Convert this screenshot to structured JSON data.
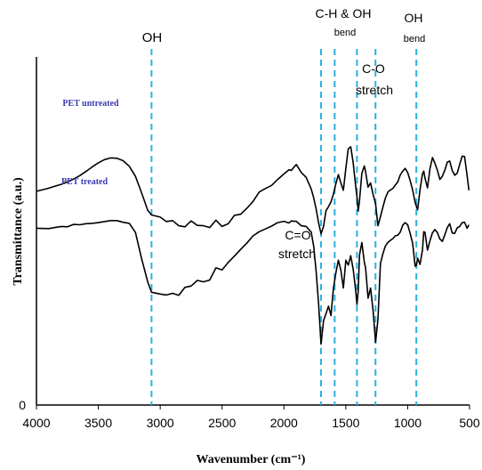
{
  "chart_data": {
    "type": "line",
    "title": "",
    "xlabel": "Wavenumber (cm⁻¹)",
    "ylabel": "Transmittance (a.u.)",
    "xlim": [
      4000,
      500
    ],
    "x_reversed": true,
    "xticks": [
      "4000",
      "3500",
      "3000",
      "2500",
      "2000",
      "1500",
      "1000",
      "500"
    ],
    "yticks": [
      "0"
    ],
    "grid": false,
    "series_label_color": "#3b3bb3",
    "reference_line_color": "#2bb0e0",
    "reference_lines_cm": [
      3070,
      1700,
      1590,
      1410,
      1260,
      930
    ],
    "annotations": [
      {
        "lines": [
          "OH"
        ]
      },
      {
        "lines": [
          "C-H & OH",
          "bend"
        ]
      },
      {
        "lines": [
          "C-O",
          "stretch"
        ]
      },
      {
        "lines": [
          "OH",
          "bend"
        ]
      },
      {
        "lines": [
          "C=O",
          "stretch"
        ]
      }
    ],
    "series": [
      {
        "name": "PET untreated",
        "x": [
          4000,
          3900,
          3850,
          3800,
          3750,
          3700,
          3650,
          3600,
          3550,
          3500,
          3450,
          3400,
          3350,
          3300,
          3250,
          3200,
          3150,
          3100,
          3070,
          3000,
          2950,
          2900,
          2850,
          2800,
          2750,
          2700,
          2650,
          2600,
          2550,
          2500,
          2450,
          2400,
          2350,
          2300,
          2250,
          2200,
          2150,
          2100,
          2050,
          2000,
          1960,
          1940,
          1920,
          1900,
          1860,
          1820,
          1780,
          1760,
          1740,
          1720,
          1700,
          1680,
          1660,
          1640,
          1620,
          1600,
          1580,
          1560,
          1540,
          1520,
          1500,
          1480,
          1460,
          1440,
          1420,
          1410,
          1400,
          1390,
          1370,
          1350,
          1340,
          1320,
          1300,
          1280,
          1260,
          1240,
          1220,
          1200,
          1180,
          1160,
          1140,
          1120,
          1100,
          1080,
          1060,
          1040,
          1020,
          1000,
          980,
          960,
          940,
          930,
          920,
          900,
          880,
          870,
          860,
          840,
          820,
          800,
          780,
          760,
          740,
          720,
          700,
          680,
          660,
          640,
          620,
          600,
          580,
          560,
          540,
          520,
          505
        ],
        "y": [
          61.4,
          62.3,
          62.9,
          63.4,
          64.1,
          64.9,
          65.9,
          67.1,
          68.4,
          69.6,
          70.5,
          71.0,
          70.9,
          70.2,
          68.6,
          65.7,
          60.9,
          55.9,
          54.6,
          54.0,
          52.7,
          53.0,
          51.5,
          51.2,
          52.9,
          51.6,
          51.5,
          51.0,
          53.1,
          51.3,
          52.1,
          54.5,
          54.8,
          56.5,
          58.5,
          61.2,
          62.2,
          63.1,
          64.8,
          66.4,
          67.6,
          67.4,
          68.3,
          69.1,
          66.8,
          65.4,
          62.1,
          59.6,
          56.3,
          52.4,
          49.2,
          51.3,
          55.8,
          57.0,
          58.4,
          60.6,
          63.6,
          66.2,
          63.8,
          61.7,
          68.0,
          73.6,
          74.2,
          69.5,
          62.8,
          59.9,
          55.7,
          58.6,
          66.6,
          68.7,
          67.0,
          62.6,
          63.8,
          60.5,
          57.9,
          51.5,
          54.1,
          56.9,
          59.5,
          61.2,
          61.8,
          62.2,
          63.2,
          64.1,
          66.1,
          67.2,
          68.0,
          66.8,
          64.5,
          61.8,
          58.2,
          57.1,
          56.1,
          61.8,
          66.5,
          67.2,
          65.2,
          62.4,
          67.9,
          71.1,
          69.5,
          67.5,
          64.8,
          65.7,
          67.5,
          69.8,
          70.1,
          67.4,
          66.0,
          66.6,
          69.1,
          71.5,
          71.4,
          66.0,
          61.7
        ]
      },
      {
        "name": "PET treated",
        "x": [
          4000,
          3900,
          3850,
          3800,
          3750,
          3700,
          3650,
          3600,
          3550,
          3500,
          3450,
          3400,
          3350,
          3300,
          3250,
          3200,
          3150,
          3100,
          3070,
          3000,
          2950,
          2900,
          2850,
          2800,
          2750,
          2700,
          2650,
          2600,
          2550,
          2500,
          2450,
          2400,
          2350,
          2300,
          2250,
          2200,
          2150,
          2100,
          2050,
          2000,
          1960,
          1940,
          1920,
          1900,
          1860,
          1820,
          1780,
          1760,
          1740,
          1720,
          1700,
          1680,
          1660,
          1640,
          1620,
          1600,
          1580,
          1560,
          1540,
          1520,
          1500,
          1480,
          1460,
          1440,
          1420,
          1410,
          1400,
          1390,
          1370,
          1350,
          1340,
          1320,
          1300,
          1280,
          1260,
          1240,
          1220,
          1200,
          1180,
          1160,
          1140,
          1120,
          1100,
          1080,
          1060,
          1040,
          1020,
          1000,
          980,
          960,
          940,
          930,
          920,
          900,
          880,
          870,
          860,
          840,
          820,
          800,
          780,
          760,
          740,
          720,
          700,
          680,
          660,
          640,
          620,
          600,
          580,
          560,
          540,
          520,
          505
        ],
        "y": [
          50.8,
          50.7,
          51.0,
          51.3,
          51.2,
          51.9,
          51.8,
          52.1,
          52.2,
          52.4,
          52.7,
          53.0,
          53.0,
          52.5,
          52.2,
          49.6,
          42.0,
          35.3,
          32.4,
          31.9,
          31.6,
          32.1,
          31.5,
          33.8,
          34.2,
          35.8,
          35.4,
          35.9,
          39.4,
          38.8,
          41.0,
          42.8,
          44.7,
          46.5,
          48.6,
          49.8,
          50.6,
          51.4,
          52.4,
          52.8,
          52.3,
          52.9,
          52.8,
          52.8,
          51.5,
          51.3,
          49.7,
          45.7,
          38.4,
          29.3,
          17.5,
          24.2,
          26.3,
          28.4,
          25.7,
          33.4,
          38.0,
          41.6,
          38.7,
          33.6,
          41.6,
          40.2,
          42.9,
          38.9,
          32.8,
          28.9,
          32.8,
          43.0,
          46.7,
          41.0,
          39.4,
          30.7,
          33.6,
          27.2,
          18.0,
          24.6,
          40.7,
          43.5,
          45.7,
          46.7,
          47.3,
          47.8,
          48.6,
          48.8,
          49.7,
          51.7,
          52.4,
          51.8,
          49.3,
          46.5,
          39.9,
          40.1,
          42.2,
          40.4,
          44.6,
          49.8,
          49.6,
          44.5,
          47.2,
          49.5,
          50.4,
          49.6,
          47.7,
          47.0,
          48.9,
          51.0,
          52.1,
          49.4,
          49.3,
          50.9,
          51.3,
          52.4,
          52.5,
          50.8,
          51.8
        ]
      }
    ]
  }
}
